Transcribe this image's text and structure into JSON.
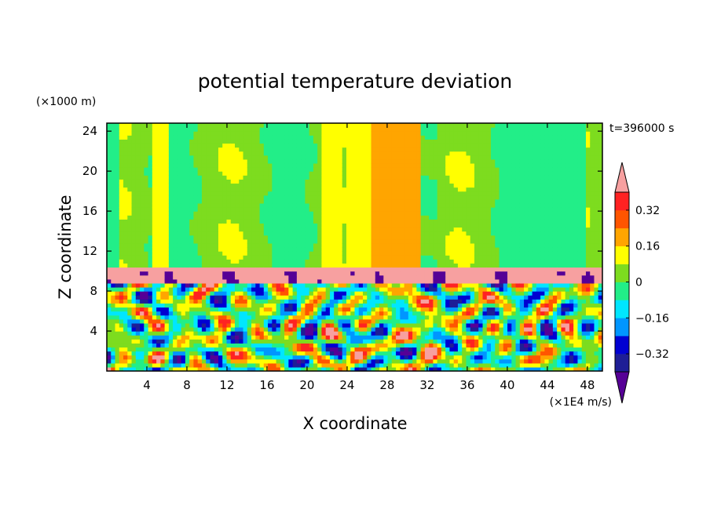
{
  "chart_data": {
    "type": "heatmap",
    "title": "potential temperature deviation",
    "xlabel": "X coordinate",
    "ylabel": "Z coordinate",
    "x_unit": "(×1E4 m/s)",
    "y_unit": "(×1000 m)",
    "time_label": "t=396000 s",
    "x_ticks": [
      4,
      8,
      12,
      16,
      20,
      24,
      28,
      32,
      36,
      40,
      44,
      48
    ],
    "y_ticks": [
      4,
      8,
      12,
      16,
      20,
      24
    ],
    "xlim": [
      0,
      49.5
    ],
    "ylim": [
      0,
      24.8
    ],
    "colorbar": {
      "levels": [
        -0.4,
        -0.32,
        -0.24,
        -0.16,
        -0.08,
        0,
        0.08,
        0.16,
        0.24,
        0.32,
        0.4
      ],
      "tick_labels": [
        "0.32",
        "0.16",
        "0",
        "−0.16",
        "−0.32"
      ],
      "tick_values": [
        0.32,
        0.16,
        0,
        -0.16,
        -0.32
      ],
      "colors": [
        "#560096",
        "#1e1e96",
        "#0000d2",
        "#0096ff",
        "#00e6ff",
        "#22ee88",
        "#7ddc1f",
        "#ffff00",
        "#ffa500",
        "#ff5500",
        "#ff2222",
        "#f7a0a0"
      ],
      "under_color": "#560096",
      "over_color": "#f7a0a0"
    },
    "regions": {
      "tropopause_band_z": [
        8.8,
        10.6
      ],
      "upper_layer_description": "smooth large-scale bands, mostly 0 to 0.08 with warm columns near x=28-32 and cool columns near x=36-48",
      "lower_layer_description": "turbulent convective structures spanning -0.4 to 0.4"
    }
  }
}
